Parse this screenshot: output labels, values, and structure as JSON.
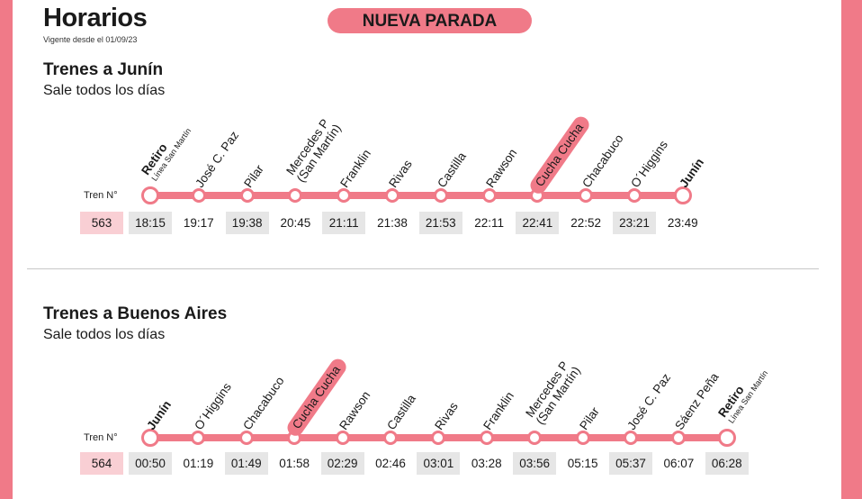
{
  "header": {
    "title": "Horarios",
    "subtitle": "Vigente desde el 01/09/23",
    "badge": "NUEVA PARADA"
  },
  "tren_label": "Tren N°",
  "colors": {
    "accent": "#f07a88",
    "shaded": "#e6e6e6",
    "train_cell": "#f9cfd4"
  },
  "sections": [
    {
      "title": "Trenes a Junín",
      "subtitle": "Sale todos los días",
      "train_number": "563",
      "stations": [
        {
          "name": "Retiro",
          "sub": "Línea San Martín",
          "bold": true
        },
        {
          "name": "José C. Paz"
        },
        {
          "name": "Pilar"
        },
        {
          "name": "Mercedes P",
          "sub": "(San Martín)"
        },
        {
          "name": "Franklin"
        },
        {
          "name": "Rivas"
        },
        {
          "name": "Castilla"
        },
        {
          "name": "Rawson"
        },
        {
          "name": "Cucha Cucha",
          "highlight": true
        },
        {
          "name": "Chacabuco"
        },
        {
          "name": "O´Higgins"
        },
        {
          "name": "Junín",
          "bold": true
        }
      ],
      "times": [
        "18:15",
        "19:17",
        "19:38",
        "20:45",
        "21:11",
        "21:38",
        "21:53",
        "22:11",
        "22:41",
        "22:52",
        "23:21",
        "23:49"
      ]
    },
    {
      "title": "Trenes a Buenos Aires",
      "subtitle": "Sale todos los días",
      "train_number": "564",
      "stations": [
        {
          "name": "Junín",
          "bold": true
        },
        {
          "name": "O´Higgins"
        },
        {
          "name": "Chacabuco"
        },
        {
          "name": "Cucha Cucha",
          "highlight": true
        },
        {
          "name": "Rawson"
        },
        {
          "name": "Castilla"
        },
        {
          "name": "Rivas"
        },
        {
          "name": "Franklin"
        },
        {
          "name": "Mercedes P",
          "sub": "(San Martín)"
        },
        {
          "name": "Pilar"
        },
        {
          "name": "José C. Paz"
        },
        {
          "name": "Sáenz Peña"
        },
        {
          "name": "Retiro",
          "sub": "Línea San Martín",
          "bold": true
        }
      ],
      "times": [
        "00:50",
        "01:19",
        "01:49",
        "01:58",
        "02:29",
        "02:46",
        "03:01",
        "03:28",
        "03:56",
        "05:15",
        "05:37",
        "06:07",
        "06:28"
      ]
    }
  ]
}
